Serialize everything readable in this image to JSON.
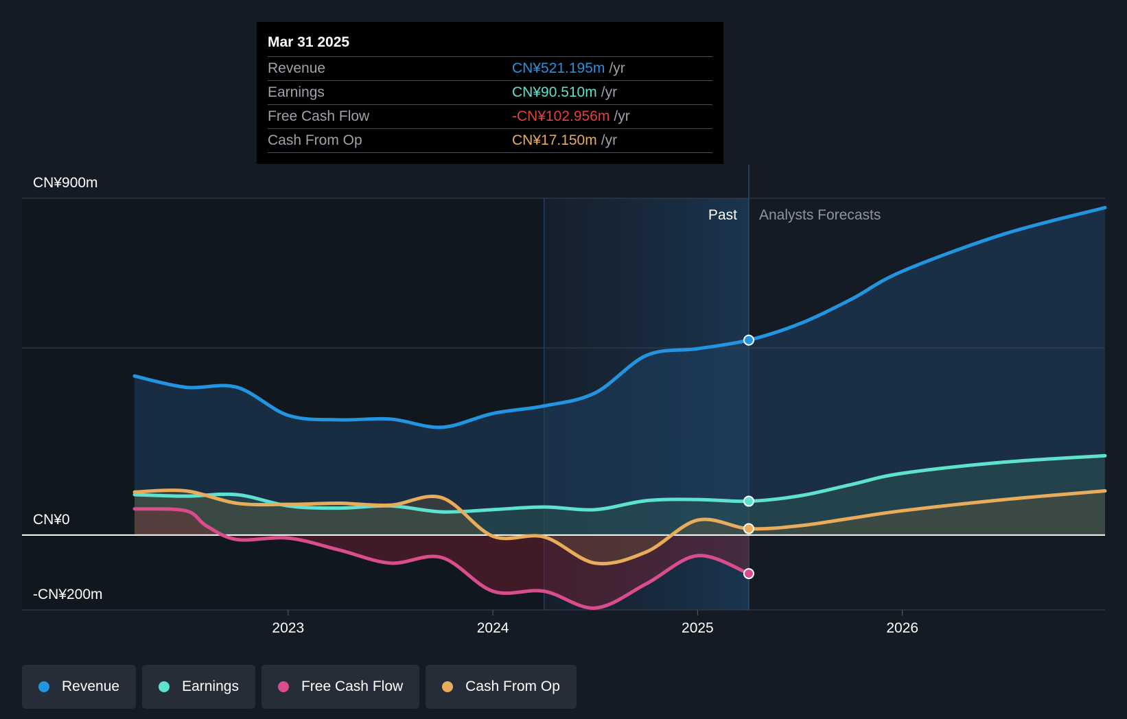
{
  "chart_data": {
    "type": "area",
    "y_axis_labels": [
      "CN¥900m",
      "CN¥0",
      "-CN¥200m"
    ],
    "ylim": [
      -200,
      900
    ],
    "y_gridlines": [
      900,
      500,
      0,
      -200
    ],
    "x_ticks": [
      {
        "label": "2023",
        "year": 2023.0
      },
      {
        "label": "2024",
        "year": 2024.0
      },
      {
        "label": "2025",
        "year": 2025.0
      },
      {
        "label": "2026",
        "year": 2026.0
      }
    ],
    "xlim": [
      2021.7,
      2026.99
    ],
    "past_label": "Past",
    "forecast_label": "Analysts Forecasts",
    "highlight_start": 2024.25,
    "divider_year": 2025.25,
    "series": [
      {
        "name": "Revenue",
        "color": "#2394df",
        "points": [
          [
            2022.25,
            425
          ],
          [
            2022.5,
            395
          ],
          [
            2022.75,
            395
          ],
          [
            2023.0,
            320
          ],
          [
            2023.25,
            308
          ],
          [
            2023.5,
            310
          ],
          [
            2023.75,
            288
          ],
          [
            2024.0,
            325
          ],
          [
            2024.25,
            345
          ],
          [
            2024.5,
            380
          ],
          [
            2024.75,
            480
          ],
          [
            2025.0,
            498
          ],
          [
            2025.25,
            521
          ]
        ],
        "forecast": [
          [
            2025.25,
            521
          ],
          [
            2025.5,
            565
          ],
          [
            2025.75,
            630
          ],
          [
            2026.0,
            705
          ],
          [
            2026.5,
            805
          ],
          [
            2026.99,
            875
          ]
        ]
      },
      {
        "name": "Earnings",
        "color": "#5ee2cf",
        "points": [
          [
            2022.25,
            108
          ],
          [
            2022.5,
            104
          ],
          [
            2022.75,
            108
          ],
          [
            2023.0,
            78
          ],
          [
            2023.25,
            72
          ],
          [
            2023.5,
            78
          ],
          [
            2023.75,
            62
          ],
          [
            2024.0,
            68
          ],
          [
            2024.25,
            75
          ],
          [
            2024.5,
            68
          ],
          [
            2024.75,
            92
          ],
          [
            2025.0,
            95
          ],
          [
            2025.25,
            90.5
          ]
        ],
        "forecast": [
          [
            2025.25,
            90.5
          ],
          [
            2025.5,
            105
          ],
          [
            2025.75,
            135
          ],
          [
            2026.0,
            165
          ],
          [
            2026.5,
            195
          ],
          [
            2026.99,
            212
          ]
        ]
      },
      {
        "name": "Free Cash Flow",
        "color": "#d94d8c",
        "points": [
          [
            2022.25,
            70
          ],
          [
            2022.5,
            65
          ],
          [
            2022.6,
            25
          ],
          [
            2022.75,
            -12
          ],
          [
            2023.0,
            -8
          ],
          [
            2023.25,
            -40
          ],
          [
            2023.5,
            -75
          ],
          [
            2023.75,
            -60
          ],
          [
            2024.0,
            -150
          ],
          [
            2024.25,
            -150
          ],
          [
            2024.5,
            -195
          ],
          [
            2024.75,
            -130
          ],
          [
            2025.0,
            -55
          ],
          [
            2025.25,
            -102.956
          ]
        ],
        "forecast": []
      },
      {
        "name": "Cash From Op",
        "color": "#e8ac5a",
        "points": [
          [
            2022.25,
            115
          ],
          [
            2022.5,
            118
          ],
          [
            2022.75,
            85
          ],
          [
            2023.0,
            82
          ],
          [
            2023.25,
            85
          ],
          [
            2023.5,
            80
          ],
          [
            2023.75,
            100
          ],
          [
            2024.0,
            -3
          ],
          [
            2024.25,
            -5
          ],
          [
            2024.5,
            -75
          ],
          [
            2024.75,
            -45
          ],
          [
            2025.0,
            40
          ],
          [
            2025.25,
            17.15
          ]
        ],
        "forecast": [
          [
            2025.25,
            17.15
          ],
          [
            2025.5,
            25
          ],
          [
            2025.75,
            45
          ],
          [
            2026.0,
            65
          ],
          [
            2026.5,
            95
          ],
          [
            2026.99,
            118
          ]
        ]
      }
    ]
  },
  "tooltip": {
    "date": "Mar 31 2025",
    "rows": [
      {
        "label": "Revenue",
        "value": "CN¥521.195m",
        "unit": "/yr",
        "color": "#2394df"
      },
      {
        "label": "Earnings",
        "value": "CN¥90.510m",
        "unit": "/yr",
        "color": "#5ee2cf"
      },
      {
        "label": "Free Cash Flow",
        "value": "-CN¥102.956m",
        "unit": "/yr",
        "color": "#e5413f"
      },
      {
        "label": "Cash From Op",
        "value": "CN¥17.150m",
        "unit": "/yr",
        "color": "#e8ac5a"
      }
    ]
  },
  "legend": [
    {
      "label": "Revenue",
      "color": "#2394df"
    },
    {
      "label": "Earnings",
      "color": "#5ee2cf"
    },
    {
      "label": "Free Cash Flow",
      "color": "#d94d8c"
    },
    {
      "label": "Cash From Op",
      "color": "#e8ac5a"
    }
  ]
}
